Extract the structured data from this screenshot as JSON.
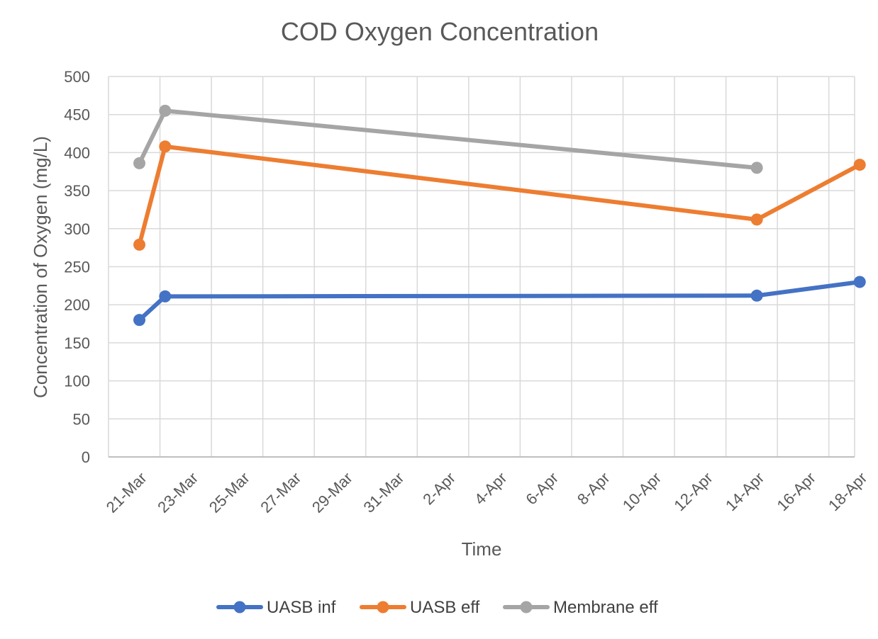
{
  "chart_data": {
    "type": "line",
    "title": "COD Oxygen Concentration",
    "xlabel": "Time",
    "ylabel": "Concentration of Oxygen (mg/L)",
    "ylim": [
      0,
      500
    ],
    "yticks": [
      "0",
      "50",
      "100",
      "150",
      "200",
      "250",
      "300",
      "350",
      "400",
      "450",
      "500"
    ],
    "x_tick_labels": [
      "21-Mar",
      "23-Mar",
      "25-Mar",
      "27-Mar",
      "29-Mar",
      "31-Mar",
      "2-Apr",
      "4-Apr",
      "6-Apr",
      "8-Apr",
      "10-Apr",
      "12-Apr",
      "14-Apr",
      "16-Apr",
      "18-Apr"
    ],
    "x_day_range": [
      0,
      29
    ],
    "x_day_offset_note": "days since 20-Mar",
    "grid": true,
    "legend_position": "bottom",
    "series": [
      {
        "name": "UASB inf",
        "color": "#4472C4",
        "points": [
          {
            "day": 1.2,
            "value": 180
          },
          {
            "day": 2.2,
            "value": 211
          },
          {
            "day": 25.2,
            "value": 212
          },
          {
            "day": 29.2,
            "value": 230
          }
        ]
      },
      {
        "name": "UASB eff",
        "color": "#ED7D31",
        "points": [
          {
            "day": 1.2,
            "value": 279
          },
          {
            "day": 2.2,
            "value": 408
          },
          {
            "day": 25.2,
            "value": 312
          },
          {
            "day": 29.2,
            "value": 384
          }
        ]
      },
      {
        "name": "Membrane eff",
        "color": "#A5A5A5",
        "points": [
          {
            "day": 1.2,
            "value": 386
          },
          {
            "day": 2.2,
            "value": 455
          },
          {
            "day": 25.2,
            "value": 380
          }
        ]
      }
    ]
  }
}
